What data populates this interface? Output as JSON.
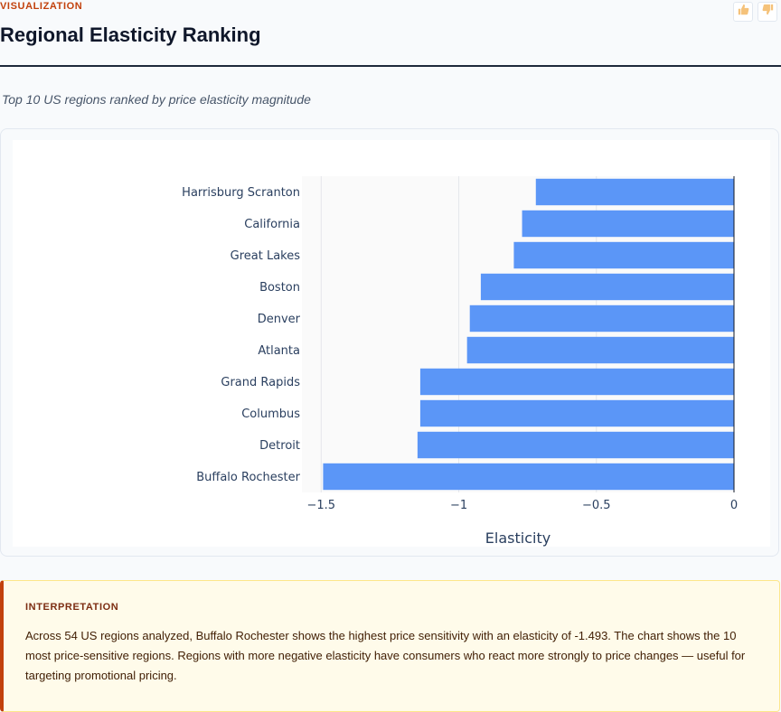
{
  "header": {
    "section_label": "VISUALIZATION",
    "title": "Regional Elasticity Ranking",
    "subtitle": "Top 10 US regions ranked by price elasticity magnitude"
  },
  "feedback": {
    "thumbs_up_icon": "thumbs-up-icon",
    "thumbs_down_icon": "thumbs-down-icon"
  },
  "chart_data": {
    "type": "bar",
    "orientation": "horizontal",
    "categories": [
      "Harrisburg Scranton",
      "California",
      "Great Lakes",
      "Boston",
      "Denver",
      "Atlanta",
      "Grand Rapids",
      "Columbus",
      "Detroit",
      "Buffalo Rochester"
    ],
    "values": [
      -0.72,
      -0.77,
      -0.8,
      -0.92,
      -0.96,
      -0.97,
      -1.14,
      -1.14,
      -1.15,
      -1.493
    ],
    "xlabel": "Elasticity",
    "ylabel": "",
    "xlim": [
      -1.57,
      0
    ],
    "xticks": [
      -1.5,
      -1,
      -0.5,
      0
    ],
    "xtick_labels": [
      "−1.5",
      "−1",
      "−0.5",
      "0"
    ],
    "grid": true,
    "bar_color": "#5b96f7"
  },
  "interpretation": {
    "label": "INTERPRETATION",
    "text": "Across 54 US regions analyzed, Buffalo Rochester shows the highest price sensitivity with an elasticity of -1.493. The chart shows the 10 most price-sensitive regions. Regions with more negative elasticity have consumers who react more strongly to price changes — useful for targeting promotional pricing."
  }
}
